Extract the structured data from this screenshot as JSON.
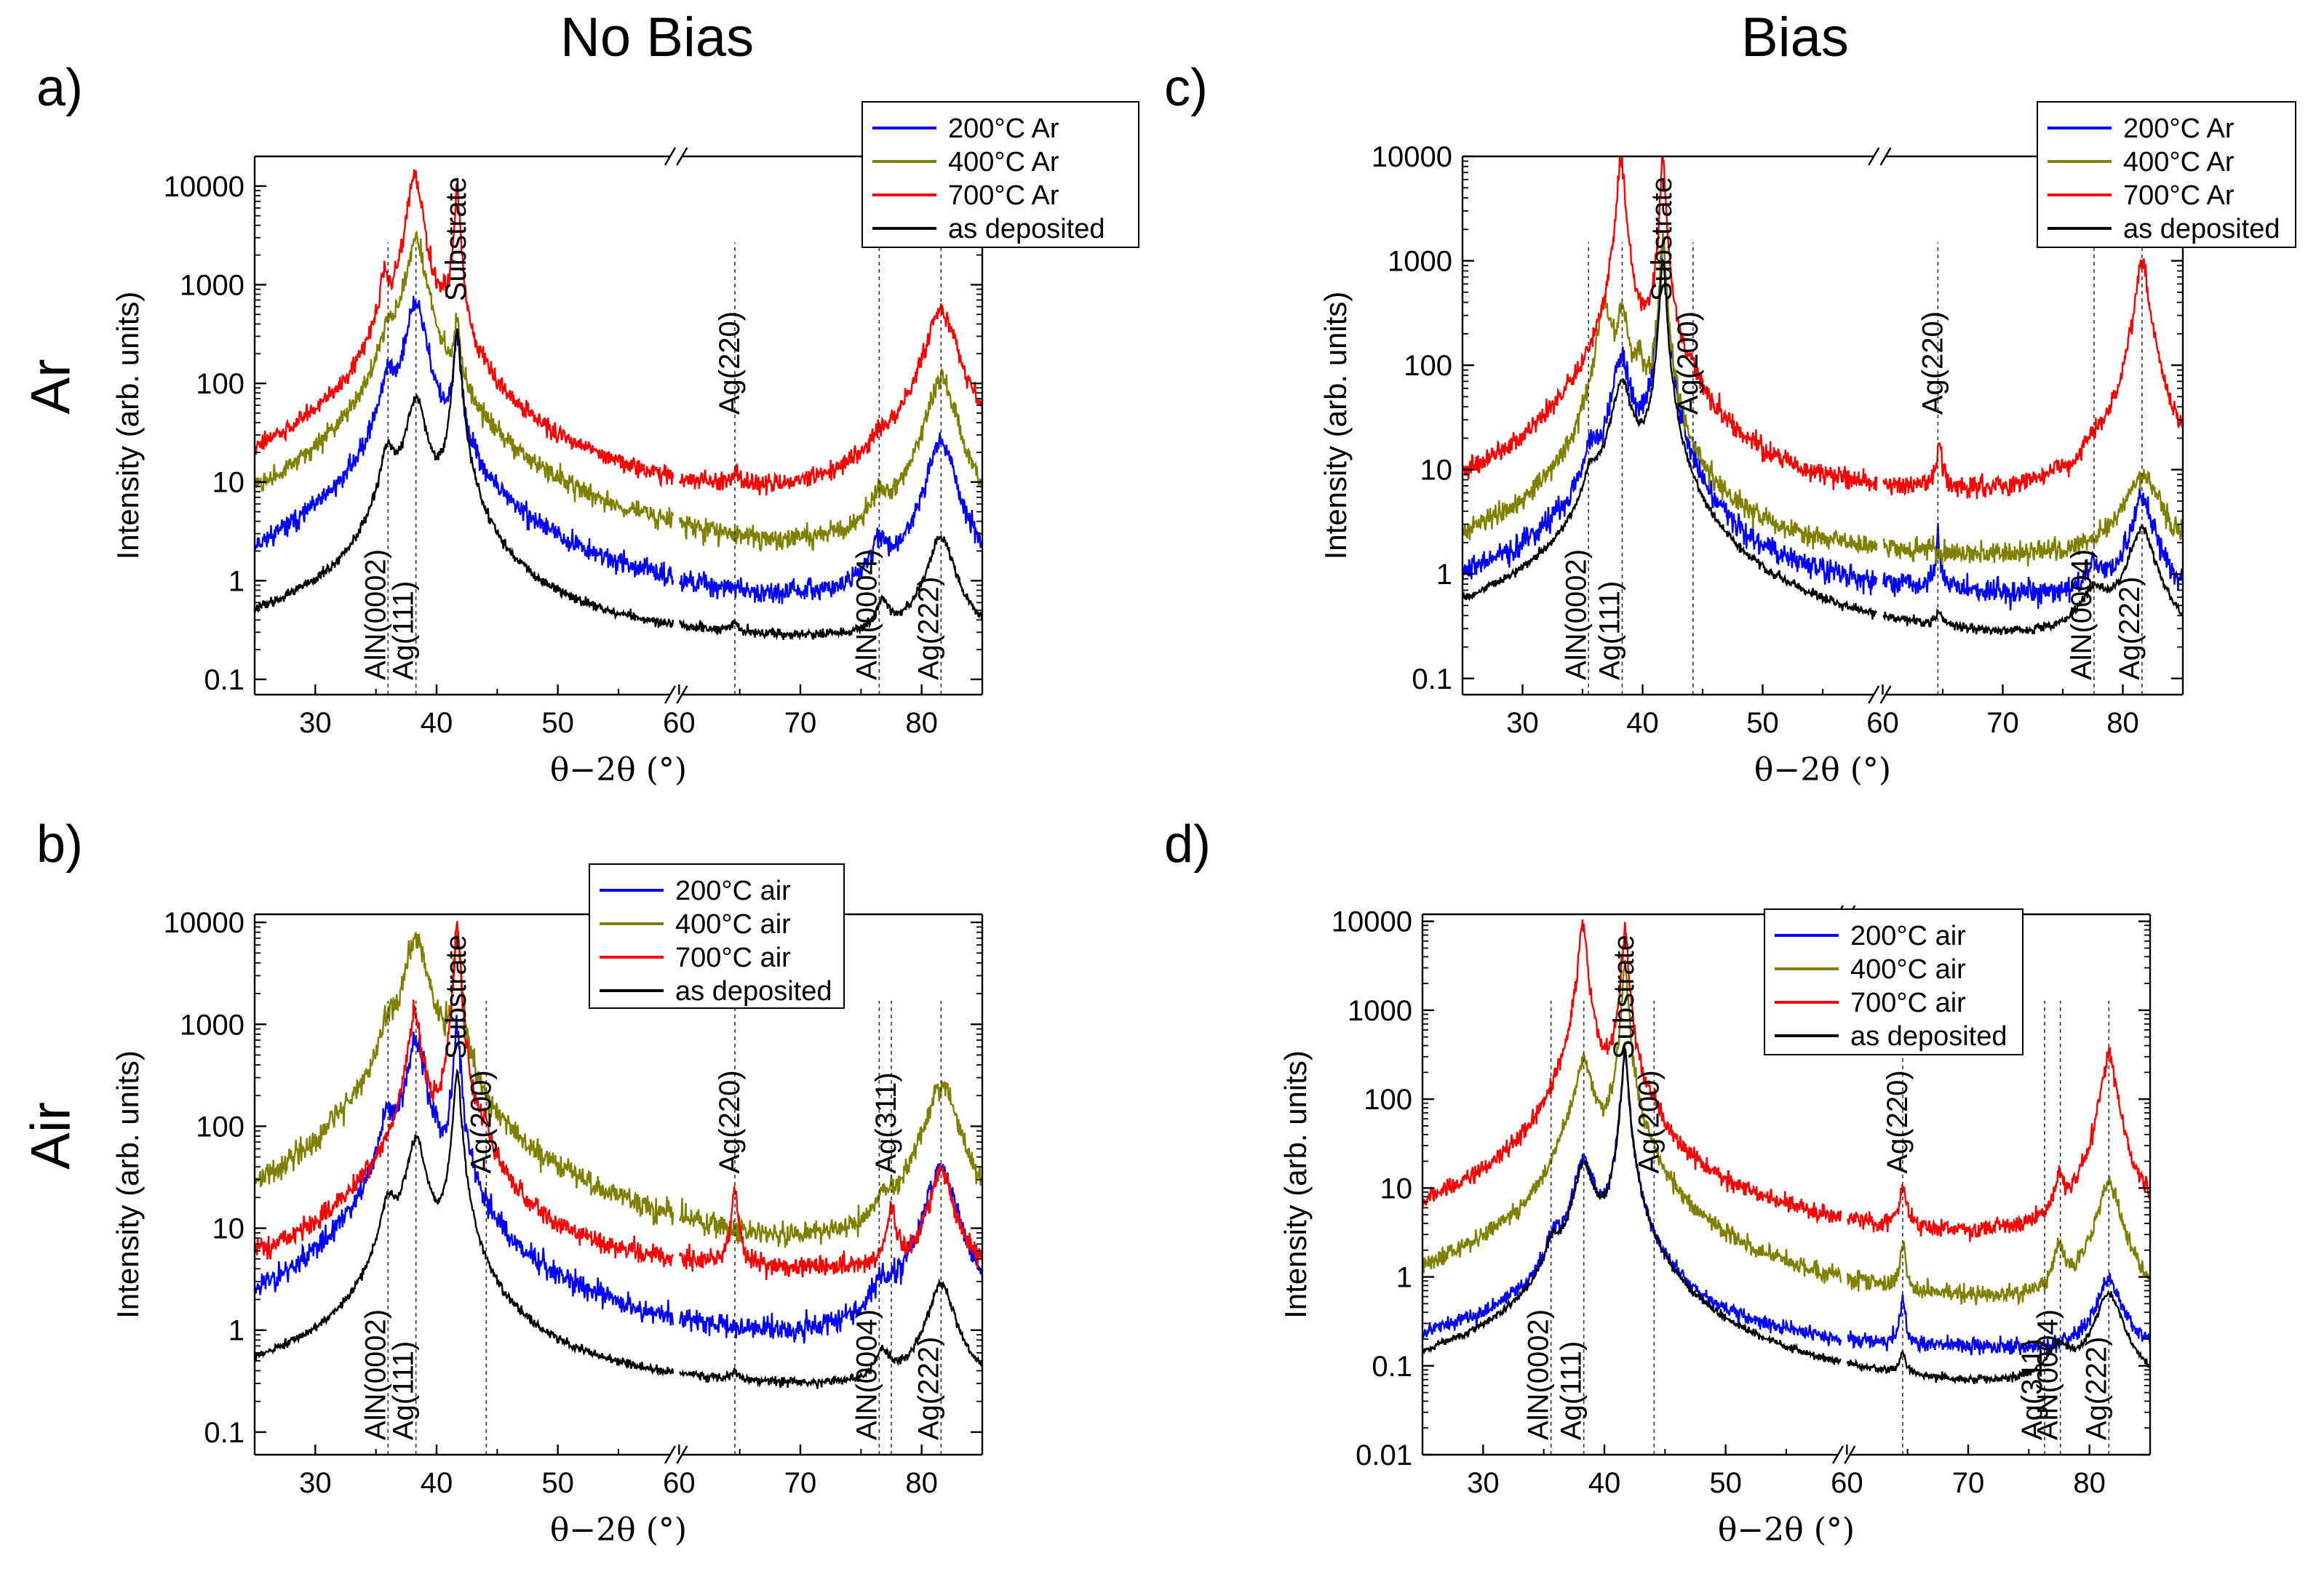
{
  "headers": {
    "col_left": "No Bias",
    "col_right": "Bias",
    "row_top": "Ar",
    "row_bottom": "Air"
  },
  "colors": {
    "blue": "#0000ff",
    "olive": "#808000",
    "red": "#ff0000",
    "black": "#000000"
  },
  "chart_data": [
    {
      "id": "a",
      "panel_label": "a)",
      "type": "line",
      "yscale": "log",
      "xlabel": "θ−2θ (°)",
      "ylabel": "Intensity (arb. units)",
      "xlim": [
        25,
        85
      ],
      "ylim": [
        0.07,
        20000
      ],
      "axis_break": [
        59.5,
        60
      ],
      "xticks": [
        30,
        40,
        50,
        60,
        70,
        80
      ],
      "yticks": [
        0.1,
        1,
        10,
        100,
        1000,
        10000
      ],
      "ytick_labels": [
        "0.1",
        "1",
        "10",
        "100",
        "1000",
        "10000"
      ],
      "legend": {
        "position": "top-right",
        "entries": [
          "200°C Ar",
          "400°C Ar",
          "700°C Ar",
          "as deposited"
        ]
      },
      "series": [
        {
          "name": "200°C Ar",
          "color": "blue",
          "base": 0.22,
          "ramp": 1.3,
          "peak_scale": 1.0,
          "noise": 0.12,
          "peaks": [
            [
              36.0,
              90,
              0.6
            ],
            [
              38.3,
              650,
              0.7
            ],
            [
              41.7,
              300,
              0.22
            ],
            [
              76.5,
              1.5,
              0.6
            ],
            [
              81.6,
              25,
              1.0
            ]
          ]
        },
        {
          "name": "400°C Ar",
          "color": "olive",
          "base": 0.45,
          "ramp": 1.2,
          "peak_scale": 1.0,
          "noise": 0.12,
          "peaks": [
            [
              36.0,
              250,
              0.6
            ],
            [
              38.3,
              2800,
              0.7
            ],
            [
              41.7,
              300,
              0.22
            ],
            [
              76.5,
              3,
              0.6
            ],
            [
              81.6,
              110,
              1.0
            ]
          ]
        },
        {
          "name": "700°C Ar",
          "color": "red",
          "base": 1.5,
          "ramp": 1.3,
          "peak_scale": 1.0,
          "noise": 0.12,
          "peaks": [
            [
              35.7,
              900,
              0.35
            ],
            [
              38.2,
              13000,
              0.5
            ],
            [
              40.5,
              150,
              0.35
            ],
            [
              41.7,
              9000,
              0.2
            ],
            [
              64.6,
              5,
              0.25
            ],
            [
              76.6,
              6,
              0.7
            ],
            [
              81.6,
              550,
              1.1
            ]
          ]
        },
        {
          "name": "as deposited",
          "color": "black",
          "base": 0.2,
          "ramp": 0.6,
          "peak_scale": 1.0,
          "noise": 0.06,
          "peaks": [
            [
              36.0,
              18,
              0.6
            ],
            [
              38.3,
              70,
              0.7
            ],
            [
              41.7,
              350,
              0.25
            ],
            [
              64.6,
              0.08,
              0.25
            ],
            [
              76.8,
              0.3,
              0.6
            ],
            [
              81.6,
              2.5,
              1.0
            ]
          ]
        }
      ],
      "annotations": [
        {
          "text": "AlN(0002)",
          "x": 36.0
        },
        {
          "text": "Ag(111)",
          "x": 38.3
        },
        {
          "text": "Substrate",
          "x": 41.8,
          "no_line": true
        },
        {
          "text": "Ag(220)",
          "x": 64.6
        },
        {
          "text": "AlN(0004)",
          "x": 76.5
        },
        {
          "text": "Ag(222)",
          "x": 81.6
        }
      ]
    },
    {
      "id": "b",
      "panel_label": "b)",
      "type": "line",
      "yscale": "log",
      "xlabel": "θ−2θ (°)",
      "ylabel": "Intensity (arb. units)",
      "xlim": [
        25,
        85
      ],
      "ylim": [
        0.06,
        12000
      ],
      "axis_break": [
        59.5,
        60
      ],
      "xticks": [
        30,
        40,
        50,
        60,
        70,
        80
      ],
      "yticks": [
        0.1,
        1,
        10,
        100,
        1000,
        10000
      ],
      "ytick_labels": [
        "0.1",
        "1",
        "10",
        "100",
        "1000",
        "10000"
      ],
      "legend": {
        "position": "top-right",
        "entries": [
          "200°C air",
          "400°C air",
          "700°C air",
          "as deposited"
        ]
      },
      "series": [
        {
          "name": "200°C air",
          "color": "blue",
          "base": 0.35,
          "ramp": 0.9,
          "peak_scale": 1.0,
          "noise": 0.14,
          "peaks": [
            [
              36.0,
              100,
              0.6
            ],
            [
              38.3,
              650,
              0.7
            ],
            [
              41.7,
              1000,
              0.22
            ],
            [
              76.6,
              1.5,
              0.6
            ],
            [
              81.6,
              40,
              1.0
            ]
          ]
        },
        {
          "name": "400°C air",
          "color": "olive",
          "base": 1.1,
          "ramp": 2.0,
          "peak_scale": 1.0,
          "noise": 0.14,
          "peaks": [
            [
              36.0,
              600,
              0.6
            ],
            [
              38.3,
              7000,
              0.8
            ],
            [
              41.7,
              9000,
              0.22
            ],
            [
              76.8,
              5,
              0.6
            ],
            [
              81.6,
              260,
              1.1
            ]
          ]
        },
        {
          "name": "700°C air",
          "color": "red",
          "base": 3.2,
          "ramp": 4.5,
          "peak_scale": 1.0,
          "noise": 0.12,
          "peaks": [
            [
              38.2,
              1200,
              0.5
            ],
            [
              41.7,
              9500,
              0.2
            ],
            [
              44.1,
              45,
              0.25
            ],
            [
              64.6,
              20,
              0.25
            ],
            [
              77.5,
              10,
              0.35
            ],
            [
              81.6,
              35,
              0.8
            ]
          ]
        },
        {
          "name": "as deposited",
          "color": "black",
          "base": 0.22,
          "ramp": 0.25,
          "peak_scale": 1.0,
          "noise": 0.05,
          "peaks": [
            [
              36.0,
              15,
              0.6
            ],
            [
              38.3,
              75,
              0.7
            ],
            [
              41.7,
              350,
              0.25
            ],
            [
              64.6,
              0.08,
              0.25
            ],
            [
              76.8,
              0.3,
              0.6
            ],
            [
              81.6,
              2.5,
              1.0
            ]
          ]
        }
      ],
      "annotations": [
        {
          "text": "AlN(0002)",
          "x": 36.0
        },
        {
          "text": "Ag(111)",
          "x": 38.3
        },
        {
          "text": "Substrate",
          "x": 41.8,
          "no_line": true
        },
        {
          "text": "Ag(200)",
          "x": 44.1
        },
        {
          "text": "Ag(220)",
          "x": 64.6
        },
        {
          "text": "AlN(0004)",
          "x": 76.5
        },
        {
          "text": "Ag(311)",
          "x": 77.5
        },
        {
          "text": "Ag(222)",
          "x": 81.6
        }
      ]
    },
    {
      "id": "c",
      "panel_label": "c)",
      "type": "line",
      "yscale": "log",
      "xlabel": "θ−2θ (°)",
      "ylabel": "Intensity (arb. units)",
      "xlim": [
        25,
        85
      ],
      "ylim": [
        0.07,
        10000
      ],
      "axis_break": [
        59.5,
        60
      ],
      "xticks": [
        30,
        40,
        50,
        60,
        70,
        80
      ],
      "yticks": [
        0.1,
        1,
        10,
        100,
        1000,
        10000
      ],
      "ytick_labels": [
        "0.1",
        "1",
        "10",
        "100",
        "1000",
        "10000"
      ],
      "legend": {
        "position": "top-right",
        "entries": [
          "200°C Ar",
          "400°C Ar",
          "700°C Ar",
          "as deposited"
        ]
      },
      "series": [
        {
          "name": "200°C Ar",
          "color": "blue",
          "base": 0.5,
          "ramp": 1.2,
          "peak_scale": 1.0,
          "noise": 0.14,
          "peaks": [
            [
              35.7,
              9,
              0.6
            ],
            [
              38.2,
              110,
              0.7
            ],
            [
              41.7,
              1500,
              0.22
            ],
            [
              64.6,
              1.5,
              0.2
            ],
            [
              77.6,
              0.5,
              0.6
            ],
            [
              81.6,
              4.5,
              0.9
            ]
          ]
        },
        {
          "name": "400°C Ar",
          "color": "olive",
          "base": 1.2,
          "ramp": 2.5,
          "peak_scale": 1.0,
          "noise": 0.12,
          "peaks": [
            [
              36.8,
              400,
              0.5
            ],
            [
              38.3,
              300,
              0.5
            ],
            [
              39.8,
              80,
              0.35
            ],
            [
              41.7,
              1500,
              0.22
            ],
            [
              81.6,
              7,
              1.5
            ]
          ]
        },
        {
          "name": "700°C Ar",
          "color": "red",
          "base": 4.0,
          "ramp": 7.0,
          "peak_scale": 1.0,
          "noise": 0.12,
          "peaks": [
            [
              35.6,
              8,
              0.4
            ],
            [
              38.2,
              9000,
              0.3
            ],
            [
              41.7,
              9000,
              0.2
            ],
            [
              44.2,
              22,
              0.25
            ],
            [
              64.7,
              10,
              0.25
            ],
            [
              77.6,
              8,
              0.3
            ],
            [
              81.6,
              1000,
              0.5
            ]
          ]
        },
        {
          "name": "as deposited",
          "color": "black",
          "base": 0.16,
          "ramp": 0.25,
          "peak_scale": 1.0,
          "noise": 0.05,
          "peaks": [
            [
              35.7,
              5,
              0.6
            ],
            [
              38.3,
              65,
              0.8
            ],
            [
              41.7,
              1000,
              0.22
            ],
            [
              64.7,
              0.1,
              0.3
            ],
            [
              77.6,
              0.4,
              1.2
            ],
            [
              81.6,
              2.5,
              1.0
            ]
          ]
        }
      ],
      "annotations": [
        {
          "text": "AlN(0002)",
          "x": 35.5
        },
        {
          "text": "Ag(111)",
          "x": 38.3
        },
        {
          "text": "Substrate",
          "x": 41.8,
          "no_line": true
        },
        {
          "text": "Ag(200)",
          "x": 44.2
        },
        {
          "text": "Ag(220)",
          "x": 64.6
        },
        {
          "text": "AlN(0004)",
          "x": 77.6
        },
        {
          "text": "Ag(222)",
          "x": 81.6
        }
      ]
    },
    {
      "id": "d",
      "panel_label": "d)",
      "type": "line",
      "yscale": "log",
      "xlabel": "θ−2θ (°)",
      "ylabel": "Intensity (arb. units)",
      "xlim": [
        25,
        85
      ],
      "ylim": [
        0.01,
        12000
      ],
      "axis_break": [
        59.5,
        60
      ],
      "xticks": [
        30,
        40,
        50,
        60,
        70,
        80
      ],
      "yticks": [
        0.01,
        0.1,
        1,
        10,
        100,
        1000,
        10000
      ],
      "ytick_labels": [
        "0.01",
        "0.1",
        "1",
        "10",
        "100",
        "1000",
        "10000"
      ],
      "legend": {
        "position": "top-right",
        "entries": [
          "200°C air",
          "400°C air",
          "700°C air",
          "as deposited"
        ]
      },
      "series": [
        {
          "name": "200°C air",
          "color": "blue",
          "base": 0.13,
          "ramp": 0.5,
          "peak_scale": 1.0,
          "noise": 0.1,
          "peaks": [
            [
              35.8,
              1.5,
              0.5
            ],
            [
              38.3,
              20,
              0.7
            ],
            [
              41.7,
              350,
              0.22
            ],
            [
              64.6,
              0.4,
              0.2
            ],
            [
              81.6,
              0.8,
              0.9
            ]
          ]
        },
        {
          "name": "400°C air",
          "color": "olive",
          "base": 0.3,
          "ramp": 1.2,
          "peak_scale": 1.0,
          "noise": 0.12,
          "peaks": [
            [
              36.6,
              12,
              0.5
            ],
            [
              38.3,
              280,
              0.6
            ],
            [
              41.7,
              3000,
              0.22
            ],
            [
              64.6,
              1.5,
              0.2
            ],
            [
              77.5,
              1.5,
              0.4
            ],
            [
              81.6,
              11,
              0.8
            ]
          ]
        },
        {
          "name": "700°C air",
          "color": "red",
          "base": 1.6,
          "ramp": 3.5,
          "peak_scale": 1.0,
          "noise": 0.12,
          "peaks": [
            [
              38.2,
              9000,
              0.3
            ],
            [
              41.7,
              9000,
              0.2
            ],
            [
              44.1,
              22,
              0.25
            ],
            [
              64.6,
              7,
              0.25
            ],
            [
              77.5,
              8,
              0.3
            ],
            [
              81.6,
              320,
              0.5
            ]
          ]
        },
        {
          "name": "as deposited",
          "color": "black",
          "base": 0.035,
          "ramp": 0.06,
          "peak_scale": 1.0,
          "noise": 0.05,
          "peaks": [
            [
              35.7,
              1.5,
              0.5
            ],
            [
              38.3,
              18,
              0.7
            ],
            [
              41.7,
              350,
              0.22
            ],
            [
              64.6,
              0.06,
              0.25
            ],
            [
              77.5,
              0.1,
              1.0
            ],
            [
              81.6,
              0.6,
              1.0
            ]
          ]
        }
      ],
      "annotations": [
        {
          "text": "AlN(0002)",
          "x": 35.6
        },
        {
          "text": "Ag(111)",
          "x": 38.3
        },
        {
          "text": "Substrate",
          "x": 41.8,
          "no_line": true
        },
        {
          "text": "Ag(200)",
          "x": 44.1
        },
        {
          "text": "Ag(220)",
          "x": 64.6
        },
        {
          "text": "Ag(311)",
          "x": 76.3
        },
        {
          "text": "AlN(0004)",
          "x": 77.6
        },
        {
          "text": "Ag(222)",
          "x": 81.6
        }
      ]
    }
  ]
}
